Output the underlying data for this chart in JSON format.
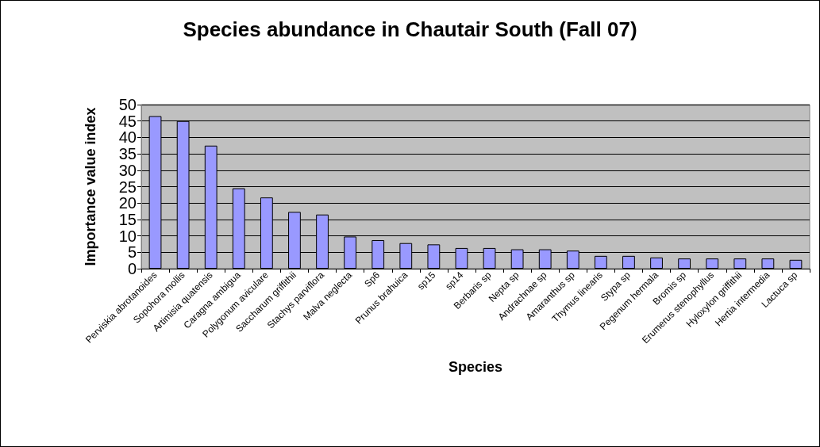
{
  "chart_data": {
    "type": "bar",
    "title": "Species abundance in Chautair South (Fall 07)",
    "xlabel": "Species",
    "ylabel": "Importance value index",
    "categories": [
      "Perviskia abrotanoides",
      "Sopohora mollis",
      "Artimisia quatensis",
      "Caragna ambigua",
      "Polygonum aviculare",
      "Saccharum griffithii",
      "Stachys parviflora",
      "Malva neglecta",
      "Sp6",
      "Prunus brahuica",
      "sp15",
      "sp14",
      "Berbaris sp",
      "Nepta sp",
      "Andrachnae sp",
      "Amaranthus sp",
      "Thymus linearis",
      "Stypa sp",
      "Pegenum hermala",
      "Bromis sp",
      "Erumerus stenophyllus",
      "Hyloxylon griffithii",
      "Hertia intermedia",
      "Lactuca sp"
    ],
    "values": [
      46.5,
      45,
      37.5,
      24.5,
      21.7,
      17.3,
      16.5,
      9.8,
      8.7,
      7.8,
      7.4,
      6.3,
      6.3,
      5.9,
      5.9,
      5.5,
      3.9,
      3.9,
      3.4,
      3.1,
      3.1,
      3.1,
      3.1,
      2.7
    ],
    "color": "#9999ff",
    "ylim": [
      0,
      50
    ],
    "yticks": [
      0,
      5,
      10,
      15,
      20,
      25,
      30,
      35,
      40,
      45,
      50
    ],
    "grid": "y"
  }
}
